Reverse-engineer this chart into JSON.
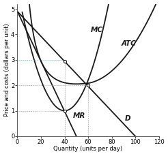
{
  "title": "",
  "xlabel": "Quantity (units per day)",
  "ylabel": "Price and costs (dollars per unit)",
  "xlim": [
    0,
    120
  ],
  "ylim": [
    0,
    5.2
  ],
  "xticks": [
    0,
    20,
    40,
    60,
    80,
    100,
    120
  ],
  "yticks": [
    0,
    1,
    2,
    3,
    4,
    5
  ],
  "background_color": "#ffffff",
  "curve_color": "#1a1a1a",
  "dotted_line_color": "#7aafc0",
  "dot_color": "#ffffff",
  "dot_edge_color": "#1a1a1a",
  "label_MC": "MC",
  "label_ATC": "ATC",
  "label_MR": "MR",
  "label_D": "D",
  "figsize": [
    2.46,
    2.29
  ],
  "dpi": 100,
  "font_size_axis": 6.0,
  "font_size_curve": 7.5
}
